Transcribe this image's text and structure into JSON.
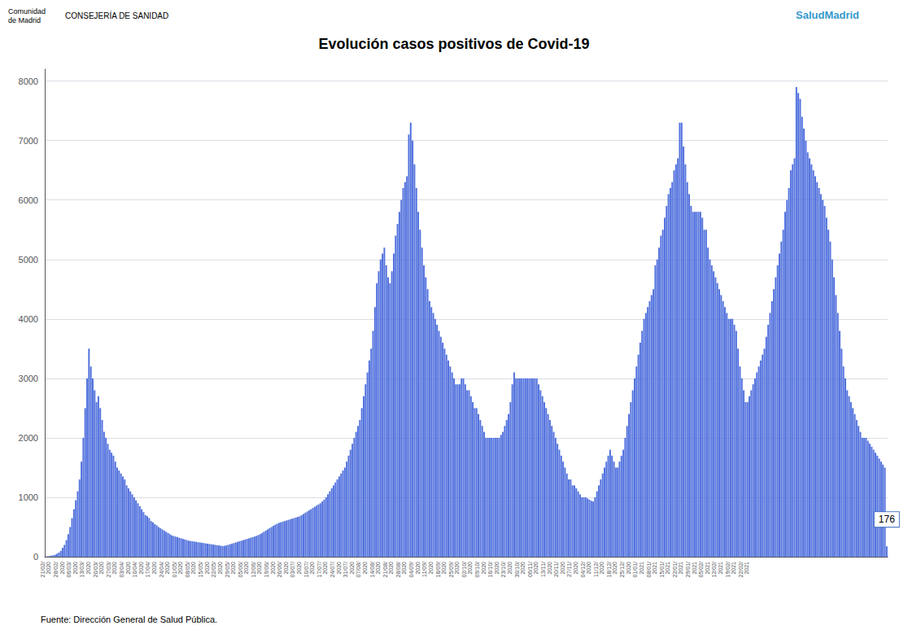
{
  "chart_data": {
    "type": "bar",
    "title": "Evolución casos positivos de Covid-19",
    "header_texts": [
      "Comunidad",
      "de Madrid",
      "CONSEJERÍA DE SANIDAD",
      "SaludMadrid"
    ],
    "annotation": "176",
    "source": "Fuente: Dirección General de Salud Pública.",
    "grid": true,
    "ylim": [
      0,
      8200
    ],
    "yticks": [
      0,
      1000,
      2000,
      3000,
      4000,
      5000,
      6000,
      7000,
      8000
    ],
    "categories": [
      "21/02/\n2020",
      null,
      null,
      null,
      null,
      null,
      null,
      "28/02/\n2020",
      null,
      null,
      null,
      null,
      null,
      null,
      "06/03/\n2020",
      null,
      null,
      null,
      null,
      null,
      null,
      "13/03/\n2020",
      null,
      null,
      null,
      null,
      null,
      null,
      "20/03/\n2020",
      null,
      null,
      null,
      null,
      null,
      null,
      "27/03/\n2020",
      null,
      null,
      null,
      null,
      null,
      null,
      "03/04/\n2020",
      null,
      null,
      null,
      null,
      null,
      null,
      "10/04/\n2020",
      null,
      null,
      null,
      null,
      null,
      null,
      "17/04/\n2020",
      null,
      null,
      null,
      null,
      null,
      null,
      "24/04/\n2020",
      null,
      null,
      null,
      null,
      null,
      null,
      "01/05/\n2020",
      null,
      null,
      null,
      null,
      null,
      null,
      "08/05/\n2020",
      null,
      null,
      null,
      null,
      null,
      null,
      "15/05/\n2020",
      null,
      null,
      null,
      null,
      null,
      null,
      "22/05/\n2020",
      null,
      null,
      null,
      null,
      null,
      null,
      "29/05/\n2020",
      null,
      null,
      null,
      null,
      null,
      null,
      "05/06/\n2020",
      null,
      null,
      null,
      null,
      null,
      null,
      "12/06/\n2020",
      null,
      null,
      null,
      null,
      null,
      null,
      "19/06/\n2020",
      null,
      null,
      null,
      null,
      null,
      null,
      "26/06/\n2020",
      null,
      null,
      null,
      null,
      null,
      null,
      "03/07/\n2020",
      null,
      null,
      null,
      null,
      null,
      null,
      "10/07/\n2020",
      null,
      null,
      null,
      null,
      null,
      null,
      "17/07/\n2020",
      null,
      null,
      null,
      null,
      null,
      null,
      "24/07/\n2020",
      null,
      null,
      null,
      null,
      null,
      null,
      "31/07/\n2020",
      null,
      null,
      null,
      null,
      null,
      null,
      "07/08/\n2020",
      null,
      null,
      null,
      null,
      null,
      null,
      "14/08/\n2020",
      null,
      null,
      null,
      null,
      null,
      null,
      "21/08/\n2020",
      null,
      null,
      null,
      null,
      null,
      null,
      "28/08/\n2020",
      null,
      null,
      null,
      null,
      null,
      null,
      "04/09/\n2020",
      null,
      null,
      null,
      null,
      null,
      null,
      "11/09/\n2020",
      null,
      null,
      null,
      null,
      null,
      null,
      "18/09/\n2020",
      null,
      null,
      null,
      null,
      null,
      null,
      "25/09/\n2020",
      null,
      null,
      null,
      null,
      null,
      null,
      "02/10/\n2020",
      null,
      null,
      null,
      null,
      null,
      null,
      "09/10/\n2020",
      null,
      null,
      null,
      null,
      null,
      null,
      "16/10/\n2020",
      null,
      null,
      null,
      null,
      null,
      null,
      "23/10/\n2020",
      null,
      null,
      null,
      null,
      null,
      null,
      "30/10/\n2020",
      null,
      null,
      null,
      null,
      null,
      null,
      "06/11/\n2020",
      null,
      null,
      null,
      null,
      null,
      null,
      "13/11/\n2020",
      null,
      null,
      null,
      null,
      null,
      null,
      "20/11/\n2020",
      null,
      null,
      null,
      null,
      null,
      null,
      "27/11/\n2020",
      null,
      null,
      null,
      null,
      null,
      null,
      "04/12/\n2020",
      null,
      null,
      null,
      null,
      null,
      null,
      "11/12/\n2020",
      null,
      null,
      null,
      null,
      null,
      null,
      "18/12/\n2020",
      null,
      null,
      null,
      null,
      null,
      null,
      "25/12/\n2020",
      null,
      null,
      null,
      null,
      null,
      null,
      "01/01/\n2021",
      null,
      null,
      null,
      null,
      null,
      null,
      "08/01/\n2021",
      null,
      null,
      null,
      null,
      null,
      null,
      "15/01/\n2021",
      null,
      null,
      null,
      null,
      null,
      null,
      "22/01/\n2021",
      null,
      null,
      null,
      null,
      null,
      null,
      "29/01/\n2021",
      null,
      null,
      null,
      null,
      null,
      null,
      "05/02/\n2021",
      null,
      null,
      null,
      null,
      null,
      null,
      "12/02/\n2021",
      null,
      null,
      null,
      null,
      null,
      null,
      "19/02/\n2021",
      null,
      null,
      null,
      null,
      null,
      null,
      "22/02/\n2021",
      null,
      null,
      null,
      null,
      null,
      null,
      null,
      null,
      null,
      null,
      null,
      null,
      null,
      null,
      null,
      null,
      null,
      null,
      null,
      null,
      null,
      null,
      null,
      null,
      null,
      null,
      null,
      null,
      null,
      null,
      null,
      null,
      null,
      null,
      null,
      null,
      null,
      null,
      null,
      null,
      null,
      null,
      null,
      null,
      null,
      null,
      null,
      null,
      null,
      null,
      null,
      null,
      null,
      null,
      null,
      null,
      null,
      null,
      null,
      null,
      null,
      null,
      null,
      null,
      null,
      null,
      null,
      null,
      null,
      null,
      null,
      null,
      null,
      null,
      null,
      null
    ],
    "values": [
      5,
      8,
      12,
      18,
      25,
      35,
      50,
      70,
      100,
      150,
      200,
      280,
      380,
      500,
      650,
      800,
      950,
      1100,
      1300,
      1600,
      2000,
      2500,
      3000,
      3500,
      3200,
      3000,
      2800,
      2600,
      2700,
      2500,
      2300,
      2100,
      2000,
      1900,
      1800,
      1750,
      1700,
      1600,
      1500,
      1450,
      1400,
      1350,
      1300,
      1200,
      1150,
      1100,
      1050,
      1000,
      950,
      900,
      850,
      800,
      750,
      700,
      680,
      650,
      600,
      580,
      550,
      530,
      500,
      480,
      460,
      440,
      420,
      400,
      380,
      360,
      350,
      340,
      330,
      320,
      310,
      300,
      290,
      280,
      270,
      265,
      260,
      255,
      250,
      245,
      240,
      235,
      230,
      225,
      220,
      215,
      210,
      205,
      200,
      195,
      190,
      185,
      180,
      185,
      190,
      200,
      210,
      220,
      230,
      240,
      250,
      260,
      270,
      280,
      290,
      300,
      310,
      320,
      330,
      340,
      350,
      365,
      380,
      400,
      420,
      440,
      460,
      480,
      500,
      520,
      540,
      555,
      570,
      580,
      590,
      600,
      610,
      620,
      630,
      640,
      650,
      660,
      670,
      680,
      700,
      720,
      740,
      760,
      780,
      800,
      820,
      840,
      860,
      880,
      900,
      930,
      960,
      1000,
      1050,
      1100,
      1150,
      1200,
      1250,
      1300,
      1350,
      1400,
      1450,
      1500,
      1600,
      1700,
      1800,
      1900,
      2000,
      2100,
      2200,
      2300,
      2500,
      2700,
      2900,
      3100,
      3300,
      3500,
      3800,
      4200,
      4600,
      4800,
      5000,
      5100,
      5200,
      4900,
      4700,
      4600,
      4800,
      5100,
      5400,
      5600,
      5800,
      6000,
      6200,
      6300,
      6400,
      7100,
      7300,
      7000,
      6600,
      6200,
      5800,
      5500,
      5200,
      4900,
      4700,
      4500,
      4300,
      4200,
      4100,
      4000,
      3900,
      3800,
      3700,
      3600,
      3500,
      3400,
      3300,
      3200,
      3100,
      3000,
      2900,
      2900,
      2900,
      3000,
      3000,
      2900,
      2800,
      2800,
      2700,
      2600,
      2500,
      2500,
      2400,
      2300,
      2200,
      2100,
      2000,
      2000,
      2000,
      2000,
      2000,
      2000,
      2000,
      2000,
      2050,
      2100,
      2200,
      2300,
      2400,
      2600,
      2900,
      3100,
      3000,
      3000,
      3000,
      3000,
      3000,
      3000,
      3000,
      3000,
      3000,
      3000,
      3000,
      3000,
      2900,
      2800,
      2700,
      2600,
      2500,
      2400,
      2300,
      2200,
      2100,
      2000,
      1900,
      1800,
      1700,
      1600,
      1500,
      1400,
      1300,
      1300,
      1200,
      1200,
      1150,
      1100,
      1050,
      1000,
      1000,
      1000,
      980,
      960,
      940,
      930,
      1000,
      1100,
      1200,
      1300,
      1400,
      1500,
      1600,
      1700,
      1800,
      1700,
      1600,
      1500,
      1500,
      1600,
      1700,
      1800,
      2000,
      2200,
      2400,
      2600,
      2800,
      3000,
      3200,
      3400,
      3600,
      3800,
      4000,
      4100,
      4200,
      4300,
      4400,
      4500,
      4900,
      5000,
      5200,
      5400,
      5500,
      5700,
      5900,
      6100,
      6200,
      6300,
      6500,
      6600,
      6700,
      7300,
      7300,
      6900,
      6600,
      6300,
      6100,
      5900,
      5800,
      5800,
      5800,
      5800,
      5800,
      5700,
      5500,
      5500,
      5200,
      5000,
      4900,
      4800,
      4700,
      4600,
      4500,
      4400,
      4300,
      4200,
      4100,
      4000,
      4000,
      4000,
      3900,
      3800,
      3500,
      3200,
      3000,
      2800,
      2600,
      2600,
      2700,
      2800,
      2900,
      3000,
      3100,
      3200,
      3300,
      3400,
      3500,
      3700,
      3900,
      4100,
      4300,
      4500,
      4700,
      4900,
      5100,
      5300,
      5500,
      5800,
      6000,
      6200,
      6500,
      6600,
      6700,
      7900,
      7800,
      7700,
      7400,
      7200,
      7000,
      6800,
      6700,
      6600,
      6500,
      6400,
      6300,
      6200,
      6100,
      6000,
      5900,
      5700,
      5500,
      5300,
      5000,
      4700,
      4400,
      4100,
      3800,
      3500,
      3200,
      3000,
      2800,
      2700,
      2600,
      2500,
      2400,
      2300,
      2200,
      2100,
      2000,
      2000,
      2000,
      1950,
      1900,
      1850,
      1800,
      1750,
      1700,
      1650,
      1600,
      1550,
      1500,
      176
    ]
  }
}
